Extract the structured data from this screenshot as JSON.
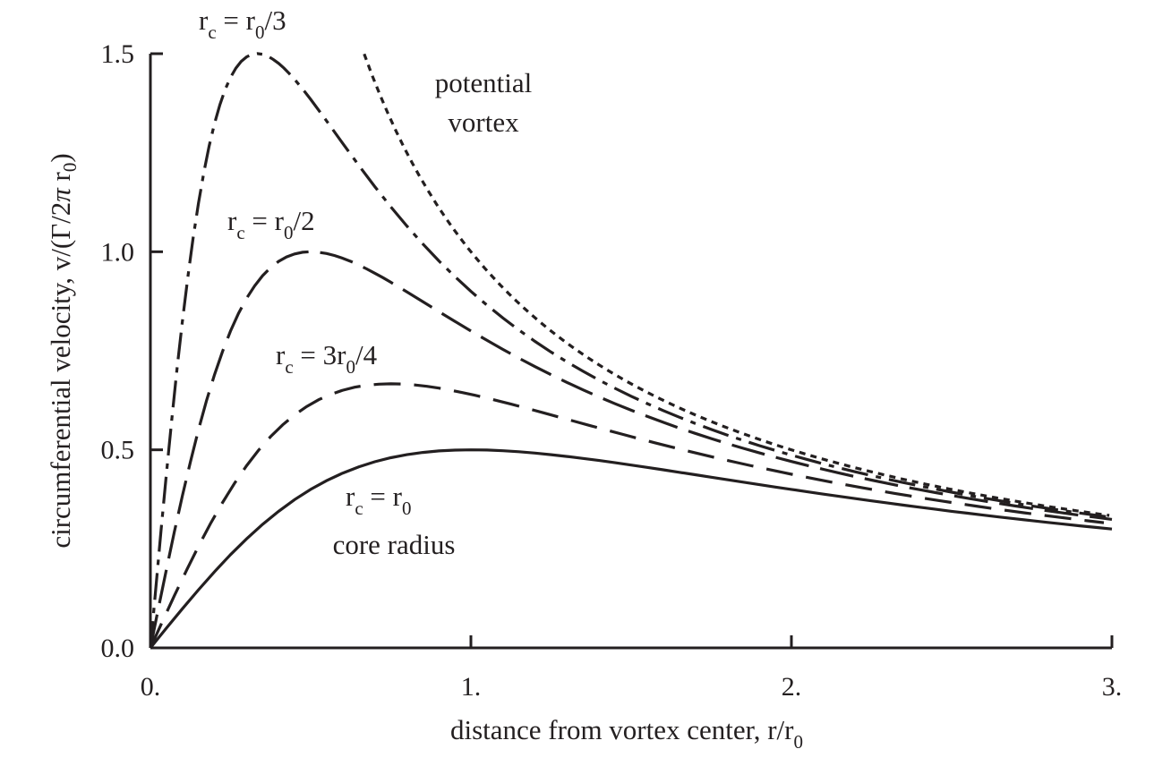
{
  "chart_data": {
    "type": "line",
    "xlabel": "distance from vortex center, r/r",
    "xlabel_sub": "0",
    "ylabel": "circumferential velocity, v/(Γ/2",
    "ylabel_pi": "π",
    "ylabel_tail": " r",
    "ylabel_sub": "0",
    "ylabel_close": ")",
    "xlim": [
      0,
      3
    ],
    "ylim": [
      0,
      1.5
    ],
    "xticks": [
      0,
      1,
      2,
      3
    ],
    "xtick_labels": [
      "0.",
      "1.",
      "2.",
      "3."
    ],
    "yticks": [
      0,
      0.5,
      1.0,
      1.5
    ],
    "ytick_labels": [
      "0.0",
      "0.5",
      "1.0",
      "1.5"
    ],
    "grid": false,
    "legend": "none",
    "x_step": 0.05,
    "series": [
      {
        "name": "potential vortex",
        "style": "dotted",
        "x_start": 0.667,
        "x_end": 3.0
      },
      {
        "name": "rc = r0/3",
        "style": "dashdot",
        "core_radius": 0.3333,
        "x_end": 3.0
      },
      {
        "name": "rc = r0/2",
        "style": "longdash",
        "core_radius": 0.5,
        "x_end": 3.0
      },
      {
        "name": "rc = 3r0/4",
        "style": "dash",
        "core_radius": 0.75,
        "x_end": 3.0
      },
      {
        "name": "rc = r0",
        "style": "solid",
        "core_radius": 1.0,
        "x_end": 3.0
      }
    ],
    "annotations": {
      "potential": {
        "line1": "potential",
        "line2": "vortex"
      },
      "r3": {
        "a": "r",
        "as": "c",
        "b": " = r",
        "bs": "0",
        "c": "/3"
      },
      "r2": {
        "a": "r",
        "as": "c",
        "b": " = r",
        "bs": "0",
        "c": "/2"
      },
      "r34": {
        "a": "r",
        "as": "c",
        "b": " = 3r",
        "bs": "0",
        "c": "/4"
      },
      "r1": {
        "a": "r",
        "as": "c",
        "b": " = r",
        "bs": "0",
        "c": "",
        "line2": "core radius"
      }
    }
  }
}
